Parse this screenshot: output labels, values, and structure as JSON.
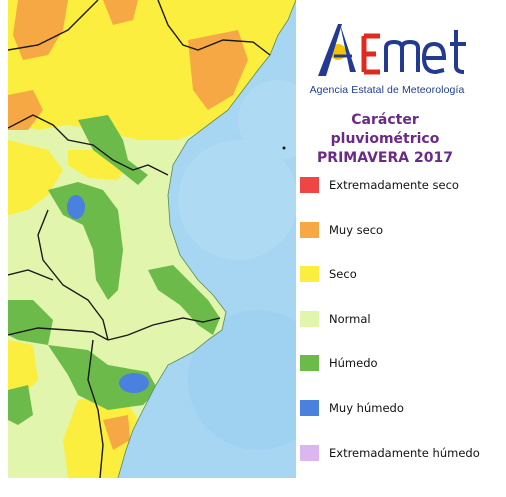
{
  "logo": {
    "wordmark": "AEmet",
    "subtitle": "Agencia Estatal de Meteorología",
    "colors": {
      "blue": "#223a8f",
      "red": "#e02a20",
      "yellow": "#f4c400"
    }
  },
  "title": {
    "line1": "Carácter pluviométrico",
    "line2": "PRIMAVERA 2017"
  },
  "legend": [
    {
      "label": "Extremadamente seco",
      "color": "#f04545"
    },
    {
      "label": "Muy seco",
      "color": "#f5a843"
    },
    {
      "label": "Seco",
      "color": "#fbee3e"
    },
    {
      "label": "Normal",
      "color": "#e2f5ac"
    },
    {
      "label": "Húmedo",
      "color": "#6cbb4a"
    },
    {
      "label": "Muy húmedo",
      "color": "#4a80de"
    },
    {
      "label": "Extremadamente húmedo",
      "color": "#dcb6ef"
    }
  ],
  "map": {
    "sea_color": "#a6d6f2",
    "border_color": "#1a1a1a"
  }
}
